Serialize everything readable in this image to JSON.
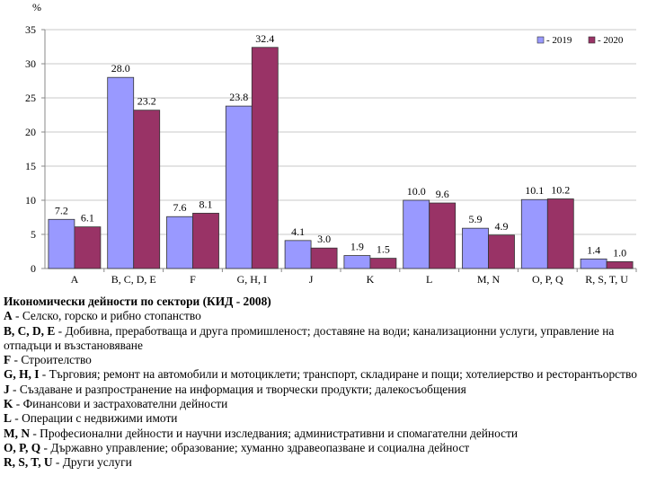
{
  "chart_data": {
    "type": "bar",
    "ylabel": "%",
    "ylim": [
      0,
      35
    ],
    "yticks": [
      0,
      5,
      10,
      15,
      20,
      25,
      30,
      35
    ],
    "grid": true,
    "legend_position": "top-right",
    "categories": [
      "A",
      "B, C, D, E",
      "F",
      "G, H, I",
      "J",
      "K",
      "L",
      "M, N",
      "O, P, Q",
      "R, S, T, U"
    ],
    "series": [
      {
        "name": "- 2019",
        "color": "#9999ff",
        "values": [
          7.2,
          28.0,
          7.6,
          23.8,
          4.1,
          1.9,
          10.0,
          5.9,
          10.1,
          1.4
        ]
      },
      {
        "name": "- 2020",
        "color": "#993366",
        "values": [
          6.1,
          23.2,
          8.1,
          32.4,
          3.0,
          1.5,
          9.6,
          4.9,
          10.2,
          1.0
        ]
      }
    ]
  },
  "notes": {
    "title": "Икономически дейности по сектори (КИД - 2008)",
    "items": [
      {
        "code": "A",
        "text": " - Селско, горско и рибно стопанство"
      },
      {
        "code": "B, C, D, E",
        "text": " - Добивна, преработваща и друга промишленост; доставяне на води; канализационни услуги, управление на отпадъци и възстановяване"
      },
      {
        "code": "F",
        "text": " - Строителство"
      },
      {
        "code": "G, H, I",
        "text": " - Търговия; ремонт на автомобили и мотоциклети; транспорт, складиране и пощи; хотелиерство и ресторантьорство"
      },
      {
        "code": "J",
        "text": " - Създаване и разпространение на информация и творчески продукти; далекосъобщения"
      },
      {
        "code": "K",
        "text": " - Финансови и застрахователни дейности"
      },
      {
        "code": "L",
        "text": " - Операции с недвижими имоти"
      },
      {
        "code": "M, N",
        "text": " - Професионални дейности и научни изследвания; административни и спомагателни дейности"
      },
      {
        "code": "O, P, Q",
        "text": " - Държавно управление; образование; хуманно здравеопазване и социална дейност"
      },
      {
        "code": "R, S, T, U",
        "text": " - Други услуги"
      }
    ]
  }
}
